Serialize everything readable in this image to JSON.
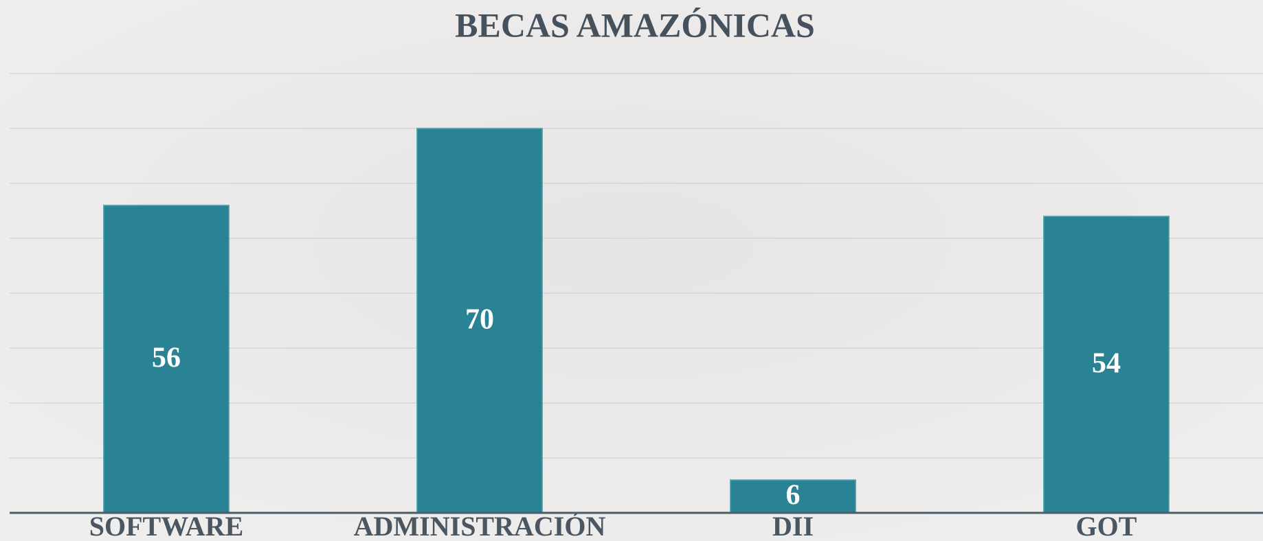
{
  "chart_data": {
    "type": "bar",
    "title": "BECAS AMAZÓNICAS",
    "categories": [
      "SOFTWARE",
      "ADMINISTRACIÓN",
      "DII",
      "GOT"
    ],
    "values": [
      56,
      70,
      6,
      54
    ],
    "color": "#237f91",
    "ylim": [
      0,
      80
    ],
    "yticks": [
      0,
      10,
      20,
      30,
      40,
      50,
      60,
      70,
      80
    ],
    "grid": true
  }
}
